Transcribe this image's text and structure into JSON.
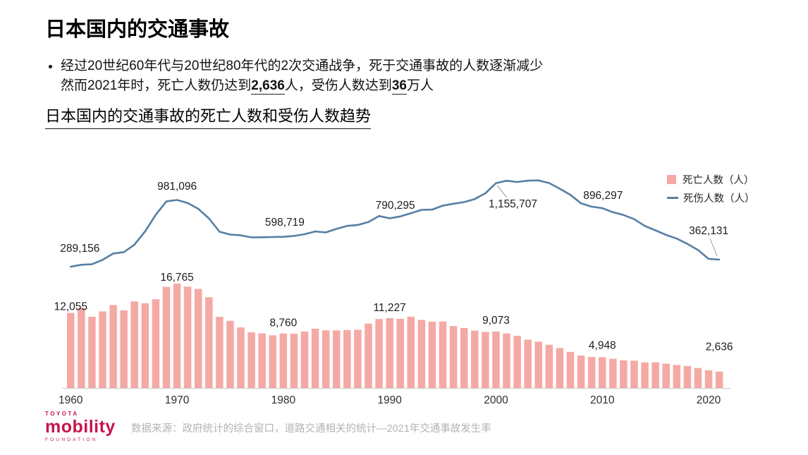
{
  "header": {
    "title": "日本国内的交通事故",
    "bullet_line1": "经过20世纪60年代与20世纪80年代的2次交通战争，死于交通事故的人数逐渐减少",
    "bullet_line2": {
      "seg1": "然而2021年时，死亡人数仍达到",
      "strong1": "2,636",
      "seg2": "人，受伤人数达到",
      "strong2": "36",
      "seg3": "万人"
    }
  },
  "footer": {
    "logo_top": "TOYOTA",
    "logo_main": "mobility",
    "logo_bottom": "FOUNDATION",
    "logo_color": "#C5154D",
    "source": "数据来源：政府统计的综合窗口，道路交通相关的统计—2021年交通事故发生率"
  },
  "chart_data": {
    "type": "bar+line",
    "title": "日本国内的交通事故的死亡人数和受伤人数趋势",
    "xlabel": "",
    "ylabel": "",
    "grid": false,
    "legend_position": "top-right",
    "x": [
      1960,
      1961,
      1962,
      1963,
      1964,
      1965,
      1966,
      1967,
      1968,
      1969,
      1970,
      1971,
      1972,
      1973,
      1974,
      1975,
      1976,
      1977,
      1978,
      1979,
      1980,
      1981,
      1982,
      1983,
      1984,
      1985,
      1986,
      1987,
      1988,
      1989,
      1990,
      1991,
      1992,
      1993,
      1994,
      1995,
      1996,
      1997,
      1998,
      1999,
      2000,
      2001,
      2002,
      2003,
      2004,
      2005,
      2006,
      2007,
      2008,
      2009,
      2010,
      2011,
      2012,
      2013,
      2014,
      2015,
      2016,
      2017,
      2018,
      2019,
      2020,
      2021
    ],
    "series": [
      {
        "name": "死亡人数（人）",
        "type": "bar",
        "color": "#F5A9A5",
        "values": [
          12055,
          12865,
          11445,
          12301,
          13318,
          12484,
          13904,
          13618,
          14256,
          16257,
          16765,
          16278,
          15918,
          14574,
          11432,
          10792,
          9734,
          8945,
          8783,
          8466,
          8760,
          8719,
          9073,
          9520,
          9262,
          9261,
          9317,
          9347,
          10344,
          11086,
          11227,
          11109,
          11452,
          10945,
          10653,
          10684,
          9943,
          9642,
          9214,
          9012,
          9073,
          8757,
          8396,
          7768,
          7436,
          6937,
          6415,
          5796,
          5209,
          4979,
          4948,
          4691,
          4438,
          4388,
          4113,
          4117,
          3904,
          3694,
          3532,
          3215,
          2839,
          2636
        ]
      },
      {
        "name": "死伤人数（人）",
        "type": "line",
        "color": "#567FA5",
        "values": [
          289156,
          308697,
          313813,
          359089,
          425666,
          440000,
          517775,
          655377,
          828071,
          967000,
          981096,
          949689,
          889198,
          789948,
          651420,
          622467,
          613957,
          593211,
          594116,
          596282,
          598719,
          607346,
          626192,
          654822,
          644321,
          681346,
          712330,
          722179,
          752845,
          814832,
          790295,
          810245,
          844003,
          878633,
          881723,
          922677,
          942203,
          958925,
          990675,
          1050397,
          1155707,
          1180955,
          1167855,
          1181431,
          1183617,
          1156633,
          1098199,
          1034445,
          945504,
          911108,
          896297,
          854613,
          825392,
          781492,
          711374,
          666023,
          618853,
          580850,
          525846,
          461775,
          369476,
          362131
        ]
      }
    ],
    "x_ticks": [
      1960,
      1970,
      1980,
      1990,
      2000,
      2010,
      2020
    ],
    "bar_labels": [
      {
        "year": 1960,
        "text": "12,055"
      },
      {
        "year": 1970,
        "text": "16,765"
      },
      {
        "year": 1980,
        "text": "8,760"
      },
      {
        "year": 1990,
        "text": "11,227"
      },
      {
        "year": 2000,
        "text": "9,073"
      },
      {
        "year": 2010,
        "text": "4,948"
      },
      {
        "year": 2021,
        "text": "2,636"
      }
    ],
    "line_labels": [
      {
        "year": 1960,
        "text": "289,156"
      },
      {
        "year": 1970,
        "text": "981,096"
      },
      {
        "year": 1980,
        "text": "598,719"
      },
      {
        "year": 1990,
        "text": "790,295"
      },
      {
        "year": 2000,
        "text": "1,155,707"
      },
      {
        "year": 2010,
        "text": "896,297"
      },
      {
        "year": 2021,
        "text": "362,131"
      }
    ]
  }
}
